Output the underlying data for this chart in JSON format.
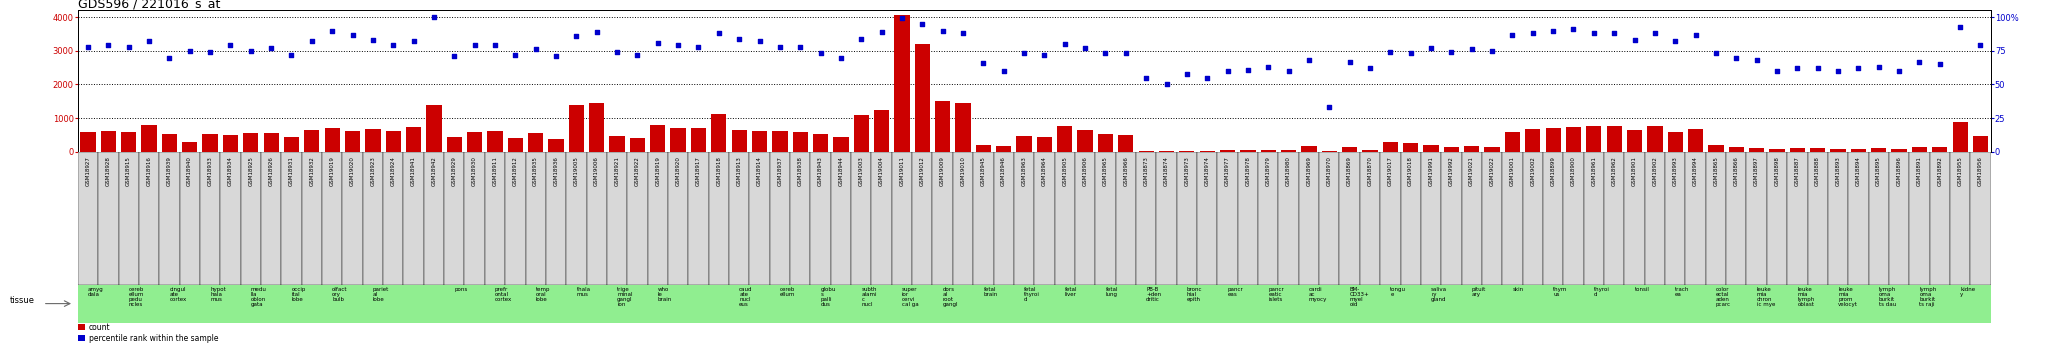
{
  "title": "GDS596 / 221016_s_at",
  "samples": [
    "GSM18927",
    "GSM18928",
    "GSM18915",
    "GSM18916",
    "GSM18939",
    "GSM18940",
    "GSM18933",
    "GSM18934",
    "GSM18925",
    "GSM18926",
    "GSM18931",
    "GSM18932",
    "GSM19019",
    "GSM19020",
    "GSM18923",
    "GSM18924",
    "GSM18941",
    "GSM18942",
    "GSM18929",
    "GSM18930",
    "GSM18911",
    "GSM18912",
    "GSM18935",
    "GSM18936",
    "GSM19005",
    "GSM19006",
    "GSM18921",
    "GSM18922",
    "GSM18919",
    "GSM18920",
    "GSM18917",
    "GSM18918",
    "GSM18913",
    "GSM18914",
    "GSM18937",
    "GSM18938",
    "GSM18943",
    "GSM18944",
    "GSM19003",
    "GSM19004",
    "GSM19011",
    "GSM19012",
    "GSM19009",
    "GSM19010",
    "GSM18945",
    "GSM18946",
    "GSM18963",
    "GSM18964",
    "GSM18905",
    "GSM18906",
    "GSM18965",
    "GSM18966",
    "GSM18873",
    "GSM18874",
    "GSM18973",
    "GSM18974",
    "GSM18977",
    "GSM18978",
    "GSM18979",
    "GSM18980",
    "GSM18969",
    "GSM18970",
    "GSM18869",
    "GSM18870",
    "GSM19017",
    "GSM19018",
    "GSM19991",
    "GSM19992",
    "GSM19021",
    "GSM19022",
    "GSM19001",
    "GSM19002",
    "GSM18899",
    "GSM18900",
    "GSM18961",
    "GSM18962",
    "GSM18901",
    "GSM18902",
    "GSM18993",
    "GSM18994",
    "GSM18865",
    "GSM18866",
    "GSM18897",
    "GSM18898",
    "GSM18887",
    "GSM18888",
    "GSM18893",
    "GSM18894",
    "GSM18895",
    "GSM18896",
    "GSM18891",
    "GSM18892",
    "GSM18955",
    "GSM18956"
  ],
  "counts": [
    600,
    620,
    580,
    800,
    520,
    300,
    520,
    500,
    560,
    570,
    440,
    650,
    700,
    630,
    680,
    620,
    740,
    1380,
    450,
    580,
    620,
    400,
    560,
    380,
    1380,
    1440,
    460,
    400,
    800,
    700,
    720,
    1130,
    650,
    620,
    620,
    580,
    540,
    440,
    1100,
    1250,
    4050,
    3200,
    1500,
    1450,
    200,
    180,
    480,
    430,
    780,
    640,
    530,
    510,
    30,
    20,
    35,
    30,
    40,
    45,
    55,
    50,
    160,
    15,
    150,
    60,
    280,
    250,
    190,
    150,
    175,
    150,
    600,
    680,
    700,
    750,
    780,
    780,
    640,
    780,
    600,
    680,
    200,
    140,
    120,
    90,
    100,
    100,
    80,
    90,
    100,
    80,
    150,
    130,
    880,
    460
  ],
  "percentiles": [
    78,
    79,
    78,
    82,
    70,
    75,
    74,
    79,
    75,
    77,
    72,
    82,
    90,
    87,
    83,
    79,
    82,
    100,
    71,
    79,
    79,
    72,
    76,
    71,
    86,
    89,
    74,
    72,
    81,
    79,
    78,
    88,
    84,
    82,
    78,
    78,
    73,
    70,
    84,
    89,
    99,
    95,
    90,
    88,
    66,
    60,
    73,
    72,
    80,
    77,
    73,
    73,
    55,
    50,
    58,
    55,
    60,
    61,
    63,
    60,
    68,
    33,
    67,
    62,
    74,
    73,
    77,
    74,
    76,
    75,
    87,
    88,
    90,
    91,
    88,
    88,
    83,
    88,
    82,
    87,
    73,
    70,
    68,
    60,
    62,
    62,
    60,
    62,
    63,
    60,
    67,
    65,
    93,
    79
  ],
  "tissues": [
    "amyg\ndala",
    "amyg\ndala",
    "cereb\nellum\npedu\nncles",
    "cereb\nellum\npedu\nncles",
    "cingul\nate\ncortex",
    "cingul\nate\ncortex",
    "hypot\nhala\nmus",
    "hypot\nhala\nmus",
    "medu\nlla\noblon\ngata",
    "medu\nlla\noblon\ngata",
    "occip\nital\nlobe",
    "occip\nital\nlobe",
    "olfact\nory\nbulb",
    "olfact\nory\nbulb",
    "pariet\nal\nlobe",
    "pariet\nal\nlobe",
    "pariet\nal\nlobe",
    "pariet\nal\nlobe",
    "pons",
    "pons",
    "prefr\nontal\ncortex",
    "prefr\nontal\ncortex",
    "temp\noral\nlobe",
    "temp\noral\nlobe",
    "thala\nmus",
    "thala\nmus",
    "trige\nminal\ngangl\nion",
    "trige\nminal\ngangl\nion",
    "who\nle\nbrain",
    "who\nle\nbrain",
    "who\nle\nbrain",
    "who\nle\nbrain",
    "caud\nate\nnucl\neus",
    "caud\nate\nnucl\neus",
    "cereb\nellum",
    "cereb\nellum",
    "globu\ns\npalli\ndus",
    "globu\ns\npalli\ndus",
    "subth\nalami\nc\nnucl",
    "subth\nalami\nc\nnucl",
    "super\nior\ncervi\ncal ga",
    "super\nior\ncervi\ncal ga",
    "dors\nal\nroot\ngangl",
    "dors\nal\nroot\ngangl",
    "fetal\nbrain",
    "fetal\nbrain",
    "fetal\nthyroi\nd",
    "fetal\nthyroi\nd",
    "fetal\nliver",
    "fetal\nliver",
    "fetal\nlung",
    "fetal\nlung",
    "PB-B\n+den\ndritic",
    "PB-B\n+den\ndritic",
    "bronc\nhial\nepith",
    "bronc\nhial\nepith",
    "pancr\neas",
    "pancr\neas",
    "pancr\neatic\nislets",
    "pancr\neatic\nislets",
    "cardi\nac\nmyocy",
    "cardi\nac\nmyocy",
    "BM-\nCD33+\nmyel\noid",
    "BM-\nCD33+\nmyel\noid",
    "tongu\ne",
    "tongu\ne",
    "saliva\nry\ngland",
    "saliva\nry\ngland",
    "pituit\nary",
    "pituit\nary",
    "skin",
    "skin",
    "thym\nus",
    "thym\nus",
    "thyroi\nd",
    "thyroi\nd",
    "tonsil",
    "tonsil",
    "trach\nea",
    "trach\nea",
    "color\nectal\naden\npcarc",
    "color\nectal\naden\npcarc",
    "leuke\nmia\nchron\nic mye",
    "leuke\nmia\nchron\nic mye",
    "leuke\nmia\nlymph\noblast",
    "leuke\nmia\nlymph\noblast",
    "leuke\nmia\nprom\nvelocyt",
    "leuke\nmia\nprom\nvelocyt",
    "lymph\noma\nburkit\nts dau",
    "lymph\noma\nburkit\nts dau",
    "lymph\noma\nburkit\nts raji",
    "lymph\noma\nburkit\nts raji",
    "kidne\ny",
    "kidne\ny"
  ],
  "bar_color": "#cc0000",
  "dot_color": "#0000cc",
  "left_yticks": [
    0,
    1000,
    2000,
    3000,
    4000
  ],
  "right_yticks": [
    0,
    25,
    50,
    75,
    100
  ],
  "left_ylim": [
    0,
    4200
  ],
  "right_ylim": [
    0,
    105
  ],
  "title_fontsize": 9,
  "tick_fontsize": 6,
  "tissue_fontsize": 4,
  "sample_fontsize": 4
}
